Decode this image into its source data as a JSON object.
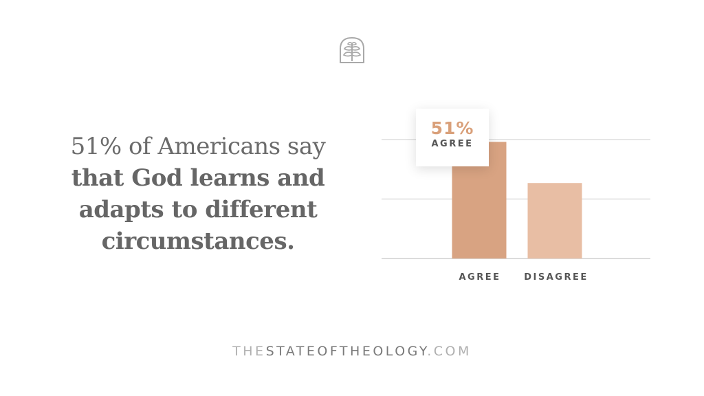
{
  "logo": {
    "icon": "tree-seal-icon",
    "color": "#a9a9a9"
  },
  "headline": {
    "line1": "51% of Americans say",
    "line2": "that God learns and",
    "line3": "adapts to different",
    "line4": "circumstances."
  },
  "callout": {
    "value": "51%",
    "label": "AGREE"
  },
  "chart_data": {
    "type": "bar",
    "categories": [
      "AGREE",
      "DISAGREE"
    ],
    "values": [
      51,
      33
    ],
    "ylim": [
      0,
      60
    ],
    "gridlines": [
      0,
      26,
      52
    ],
    "grid": true,
    "colors": [
      "#d8a382",
      "#e8bea4"
    ],
    "title": "",
    "xlabel": "",
    "ylabel": ""
  },
  "footer": {
    "part1": "THE",
    "part2": "STATEOFTHEOLOGY",
    "part3": ".COM"
  }
}
